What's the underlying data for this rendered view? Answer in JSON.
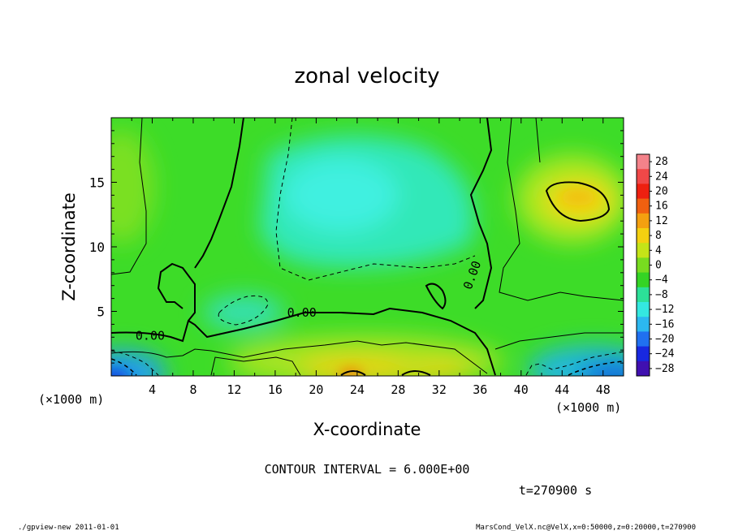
{
  "chart_data": {
    "type": "heatmap",
    "title": "zonal velocity",
    "xlabel": "X-coordinate",
    "ylabel": "Z-coordinate",
    "x_unit_left": "(×1000 m)",
    "x_unit_right": "(×1000 m)",
    "xlim": [
      0,
      50
    ],
    "ylim": [
      0,
      20
    ],
    "x_ticks": [
      "4",
      "8",
      "12",
      "16",
      "20",
      "24",
      "28",
      "32",
      "36",
      "40",
      "44",
      "48"
    ],
    "x_tick_values": [
      4,
      8,
      12,
      16,
      20,
      24,
      28,
      32,
      36,
      40,
      44,
      48
    ],
    "y_ticks": [
      "5",
      "10",
      "15"
    ],
    "y_tick_values": [
      5,
      10,
      15
    ],
    "colorbar": {
      "labels": [
        "28",
        "24",
        "20",
        "16",
        "12",
        "8",
        "4",
        "0",
        "−4",
        "−8",
        "−12",
        "−16",
        "−20",
        "−24",
        "−28"
      ],
      "values": [
        28,
        24,
        20,
        16,
        12,
        8,
        4,
        0,
        -4,
        -8,
        -12,
        -16,
        -20,
        -24,
        -28
      ],
      "range": [
        -30,
        30
      ]
    },
    "contour_labels": [
      {
        "text": "0.00",
        "x": 3.8,
        "z": 2.8
      },
      {
        "text": "0.00",
        "x": 18.6,
        "z": 4.6
      },
      {
        "text": "0.00",
        "x": 35.6,
        "z": 7.7
      }
    ],
    "contour_interval_text": "CONTOUR INTERVAL = 6.000E+00",
    "time_text": "t=270900 s",
    "footer_left": "./gpview-new   2011-01-01",
    "footer_right": "MarsCond_VelX.nc@VelX,x=0:50000,z=0:20000,t=270900"
  }
}
